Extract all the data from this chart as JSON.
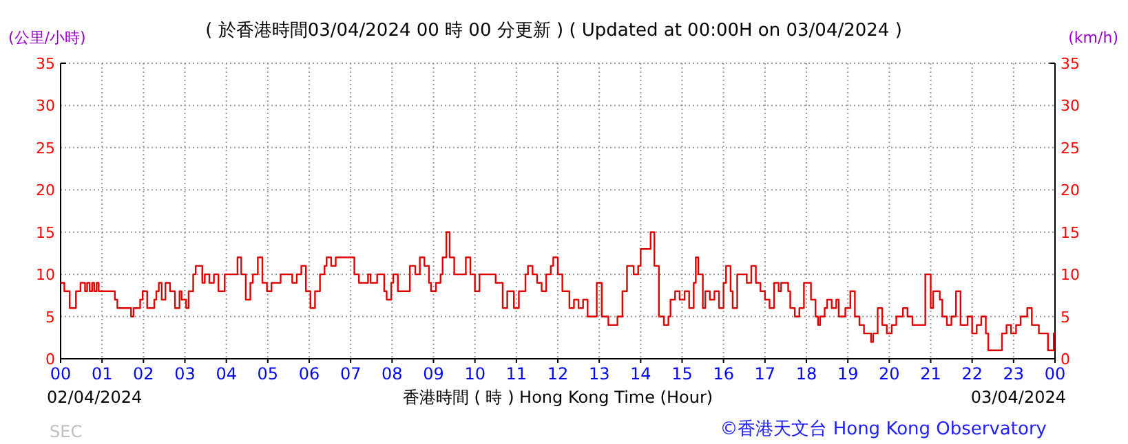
{
  "chart_data": {
    "type": "step",
    "title": "( 於香港時間03/04/2024 00 時 00 分更新 ) ( Updated at 00:00H on 03/04/2024 )",
    "xlabel": "香港時間 ( 時 ) Hong Kong Time (Hour)",
    "ylabel": "(公里/小時)",
    "y2label": "(km/h)",
    "annotations": [
      "02/04/2024",
      "03/04/2024",
      "©香港天文台 Hong Kong Observatory",
      "SEC"
    ],
    "xlim": [
      0,
      24
    ],
    "xticks": [
      {
        "value": 0,
        "label": "00"
      },
      {
        "value": 1,
        "label": "01"
      },
      {
        "value": 2,
        "label": "02"
      },
      {
        "value": 3,
        "label": "03"
      },
      {
        "value": 4,
        "label": "04"
      },
      {
        "value": 5,
        "label": "05"
      },
      {
        "value": 6,
        "label": "06"
      },
      {
        "value": 7,
        "label": "07"
      },
      {
        "value": 8,
        "label": "08"
      },
      {
        "value": 9,
        "label": "09"
      },
      10,
      11,
      12,
      13,
      14,
      15,
      16,
      17,
      18,
      19,
      20,
      21,
      22,
      23,
      {
        "value": 24,
        "label": "00"
      }
    ],
    "ylim": [
      0,
      35
    ],
    "yticks": [
      0,
      5,
      10,
      15,
      20,
      25,
      30,
      35
    ],
    "y2lim": [
      0,
      35
    ],
    "y2ticks": [
      0,
      5,
      10,
      15,
      20,
      25,
      30,
      35
    ],
    "grid": true,
    "series": [
      {
        "color": "#e00000",
        "x": [
          0,
          0.09,
          0.22,
          0.37,
          0.48,
          0.59,
          0.64,
          0.7,
          0.76,
          0.81,
          0.87,
          0.92,
          1.31,
          1.37,
          1.7,
          1.76,
          1.92,
          1.98,
          2.09,
          2.26,
          2.31,
          2.37,
          2.44,
          2.53,
          2.64,
          2.76,
          2.87,
          2.92,
          3.03,
          3.09,
          3.2,
          3.26,
          3.42,
          3.48,
          3.59,
          3.7,
          3.81,
          3.96,
          4.27,
          4.36,
          4.47,
          4.58,
          4.64,
          4.76,
          4.87,
          4.98,
          5.09,
          5.31,
          5.59,
          5.7,
          5.81,
          5.92,
          6.03,
          6.14,
          6.26,
          6.37,
          6.42,
          6.53,
          6.64,
          7.09,
          7.2,
          7.42,
          7.48,
          7.64,
          7.81,
          7.87,
          7.98,
          8.03,
          8.14,
          8.43,
          8.56,
          8.67,
          8.78,
          8.89,
          8.94,
          9.06,
          9.17,
          9.22,
          9.31,
          9.39,
          9.5,
          9.78,
          9.89,
          10.0,
          10.11,
          10.5,
          10.67,
          10.78,
          10.94,
          11.06,
          11.22,
          11.28,
          11.39,
          11.5,
          11.61,
          11.72,
          11.83,
          11.89,
          12.0,
          12.11,
          12.28,
          12.39,
          12.5,
          12.61,
          12.72,
          12.94,
          13.06,
          13.22,
          13.44,
          13.56,
          13.67,
          13.83,
          13.94,
          14.0,
          14.24,
          14.33,
          14.44,
          14.56,
          14.67,
          14.72,
          14.83,
          14.94,
          15.06,
          15.17,
          15.28,
          15.33,
          15.39,
          15.5,
          15.56,
          15.67,
          15.78,
          15.89,
          16.0,
          16.06,
          16.17,
          16.22,
          16.33,
          16.56,
          16.67,
          16.78,
          16.89,
          17.0,
          17.11,
          17.22,
          17.33,
          17.39,
          17.56,
          17.61,
          17.72,
          17.83,
          17.94,
          18.11,
          18.22,
          18.28,
          18.33,
          18.44,
          18.5,
          18.61,
          18.72,
          18.78,
          18.94,
          19.06,
          19.17,
          19.28,
          19.39,
          19.56,
          19.61,
          19.72,
          19.83,
          19.94,
          20.06,
          20.17,
          20.33,
          20.44,
          20.56,
          20.87,
          21.0,
          21.06,
          21.22,
          21.28,
          21.39,
          21.5,
          21.61,
          21.72,
          21.89,
          22.0,
          22.11,
          22.22,
          22.33,
          22.39,
          22.72,
          22.83,
          22.94,
          23.06,
          23.17,
          23.33,
          23.44,
          23.61,
          23.83,
          23.97
        ],
        "values": [
          9,
          8,
          6,
          8,
          9,
          8,
          9,
          8,
          9,
          8,
          9,
          8,
          7,
          6,
          5,
          6,
          7,
          8,
          6,
          7,
          8,
          9,
          7,
          9,
          8,
          6,
          8,
          7,
          6,
          8,
          10,
          11,
          9,
          10,
          9,
          10,
          8,
          10,
          12,
          10,
          7,
          9,
          10,
          12,
          9,
          8,
          9,
          10,
          9,
          10,
          11,
          8,
          6,
          8,
          10,
          11,
          12,
          11,
          12,
          10,
          9,
          10,
          9,
          10,
          8,
          7,
          9,
          10,
          8,
          11,
          10,
          12,
          11,
          9,
          8,
          9,
          10,
          12,
          15,
          12,
          10,
          12,
          10,
          8,
          10,
          9,
          6,
          8,
          6,
          8,
          10,
          11,
          10,
          9,
          8,
          10,
          11,
          12,
          10,
          8,
          6,
          7,
          6,
          7,
          5,
          9,
          5,
          4,
          5,
          8,
          11,
          10,
          11,
          13,
          15,
          11,
          5,
          4,
          5,
          7,
          8,
          7,
          8,
          6,
          9,
          12,
          10,
          6,
          8,
          7,
          8,
          6,
          9,
          11,
          8,
          6,
          10,
          9,
          11,
          9,
          8,
          7,
          6,
          9,
          8,
          9,
          8,
          6,
          5,
          6,
          9,
          7,
          5,
          4,
          5,
          6,
          7,
          6,
          7,
          5,
          6,
          8,
          5,
          4,
          3,
          2,
          3,
          6,
          4,
          3,
          4,
          5,
          6,
          5,
          4,
          10,
          6,
          8,
          7,
          5,
          4,
          5,
          8,
          4,
          5,
          3,
          4,
          5,
          3,
          1,
          3,
          4,
          3,
          4,
          5,
          6,
          4,
          3,
          1,
          3
        ]
      }
    ]
  }
}
